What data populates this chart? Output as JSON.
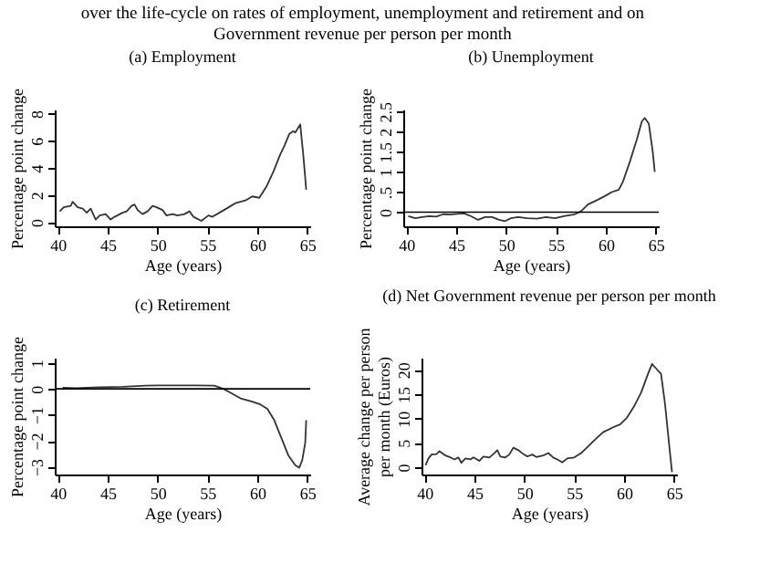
{
  "chart_data": [
    {
      "type": "line",
      "title": "(a) Employment",
      "annotations": [
        "over the life-cycle on rates of employment, unemployment and retirement and on\nGovernment revenue per person per month"
      ],
      "xlabel": "Age (years)",
      "ylabel": "Percentage point change",
      "xlim": [
        39.7,
        65.3
      ],
      "xticks": [
        40,
        45,
        50,
        55,
        60,
        65
      ],
      "ylim": [
        -0.3,
        8.3
      ],
      "yticks": [
        0,
        2,
        4,
        6,
        8
      ],
      "series": [
        {
          "color": "#333333",
          "x": [
            40.2,
            40.6,
            41.3,
            41.5,
            42,
            42.5,
            42.9,
            43.3,
            43.8,
            44.2,
            44.8,
            45.3,
            45.7,
            46.5,
            46.9,
            47.4,
            47.7,
            48,
            48.5,
            49,
            49.5,
            49.9,
            50.5,
            50.9,
            51.5,
            52,
            52.7,
            53.2,
            53.6,
            54.4,
            55.1,
            55.5,
            56.2,
            56.9,
            57.8,
            58.8,
            59.5,
            60.2,
            60.9,
            61.6,
            62.3,
            62.7,
            63.2,
            63.6,
            63.8,
            64.3,
            64.6,
            64.9
          ],
          "values": [
            0.8,
            1.1,
            1.2,
            1.5,
            1.1,
            1.0,
            0.7,
            1.0,
            0.2,
            0.5,
            0.6,
            0.2,
            0.4,
            0.7,
            0.8,
            1.2,
            1.3,
            0.9,
            0.6,
            0.8,
            1.2,
            1.1,
            0.9,
            0.5,
            0.6,
            0.5,
            0.6,
            0.8,
            0.4,
            0.1,
            0.5,
            0.4,
            0.7,
            1.0,
            1.4,
            1.6,
            1.9,
            1.8,
            2.6,
            3.7,
            5.0,
            5.6,
            6.5,
            6.7,
            6.6,
            7.2,
            5.0,
            2.4
          ]
        }
      ]
    },
    {
      "type": "line",
      "title": "(b) Unemployment",
      "xlabel": "Age (years)",
      "ylabel": "Percentage point change",
      "xlim": [
        39.7,
        65.3
      ],
      "xticks": [
        40,
        45,
        50,
        55,
        60,
        65
      ],
      "ylim": [
        -0.35,
        2.55
      ],
      "yticks": [
        0,
        {
          "value": 0.5,
          "label": ".5"
        },
        1,
        1.5,
        2,
        {
          "value": 2.5,
          "label": "2.5"
        }
      ],
      "ref_lines": [
        {
          "axis": "y",
          "value": 0
        }
      ],
      "series": [
        {
          "color": "#333333",
          "x": [
            40.2,
            40.9,
            41.6,
            42.3,
            43,
            43.7,
            44.4,
            45.1,
            45.8,
            46.5,
            47.2,
            47.9,
            48.6,
            49.3,
            49.9,
            50.5,
            51.2,
            52.1,
            53.1,
            54,
            54.9,
            55.9,
            56.8,
            57.5,
            58.2,
            59.2,
            59.9,
            60.6,
            61.3,
            61.7,
            62.4,
            63.1,
            63.6,
            63.9,
            64.3,
            64.7,
            64.9
          ],
          "values": [
            -0.1,
            -0.15,
            -0.12,
            -0.1,
            -0.11,
            -0.05,
            -0.06,
            -0.04,
            -0.03,
            -0.1,
            -0.19,
            -0.12,
            -0.12,
            -0.19,
            -0.22,
            -0.15,
            -0.12,
            -0.15,
            -0.16,
            -0.12,
            -0.15,
            -0.09,
            -0.06,
            0.02,
            0.19,
            0.31,
            0.4,
            0.5,
            0.56,
            0.75,
            1.25,
            1.8,
            2.25,
            2.34,
            2.2,
            1.5,
            1.0
          ]
        }
      ]
    },
    {
      "type": "line",
      "title": "(c) Retirement",
      "xlabel": "Age (years)",
      "ylabel": "Percentage point change",
      "xlim": [
        39.7,
        65.3
      ],
      "xticks": [
        40,
        45,
        50,
        55,
        60,
        65
      ],
      "ylim": [
        -3.3,
        1.2
      ],
      "yticks": [
        {
          "value": -3,
          "label": "−3"
        },
        {
          "value": -2,
          "label": "−2"
        },
        {
          "value": -1,
          "label": "−1"
        },
        0,
        1
      ],
      "ref_lines": [
        {
          "axis": "y",
          "value": 0
        }
      ],
      "series": [
        {
          "color": "#333333",
          "x": [
            40.5,
            41.8,
            44.1,
            46.5,
            48.8,
            50.1,
            51.9,
            53.8,
            55.7,
            56.6,
            57.5,
            58.4,
            59.4,
            60.3,
            61,
            61.7,
            62.4,
            63.1,
            63.8,
            64.2,
            64.5,
            64.8,
            64.9
          ],
          "values": [
            0.04,
            0.03,
            0.06,
            0.08,
            0.12,
            0.13,
            0.13,
            0.13,
            0.12,
            0,
            -0.19,
            -0.38,
            -0.48,
            -0.6,
            -0.77,
            -1.21,
            -1.88,
            -2.56,
            -2.94,
            -3.04,
            -2.75,
            -2.08,
            -1.21
          ]
        }
      ]
    },
    {
      "type": "line",
      "title": "(d) Net Government revenue per person per month",
      "xlabel": "Age (years)",
      "ylabel": "Average change per person\nper month (Euros)",
      "xlim": [
        39.7,
        65.3
      ],
      "xticks": [
        40,
        45,
        50,
        55,
        60,
        65
      ],
      "ylim": [
        -1.5,
        22.5
      ],
      "yticks": [
        0,
        5,
        10,
        15,
        20
      ],
      "series": [
        {
          "color": "#333333",
          "x": [
            40.1,
            40.4,
            40.7,
            41.2,
            41.5,
            42.1,
            42.5,
            43,
            43.4,
            43.7,
            44.1,
            44.6,
            44.9,
            45.5,
            45.9,
            46.5,
            46.9,
            47.3,
            47.6,
            48.1,
            48.5,
            48.9,
            49.4,
            49.9,
            50.3,
            50.8,
            51.2,
            51.9,
            52.4,
            52.9,
            53.4,
            53.8,
            54.3,
            55,
            55.7,
            56.4,
            57.1,
            57.9,
            58.9,
            59.6,
            60.3,
            61,
            61.7,
            62.4,
            62.8,
            63.2,
            63.7,
            64.1,
            64.6,
            64.8
          ],
          "values": [
            0.4,
            1.8,
            2.6,
            2.7,
            3.3,
            2.4,
            2.1,
            1.6,
            2,
            0.9,
            1.8,
            1.6,
            2,
            1.3,
            2.2,
            2,
            2.7,
            3.5,
            2.2,
            2,
            2.6,
            4,
            3.5,
            2.7,
            2.2,
            2.6,
            2.1,
            2.4,
            2.9,
            2,
            1.5,
            1,
            1.8,
            2,
            2.9,
            4.3,
            5.7,
            7.2,
            8.2,
            8.8,
            10.2,
            12.5,
            15.3,
            19.2,
            21.2,
            20.3,
            19.2,
            13,
            2.9,
            -1
          ]
        }
      ]
    }
  ]
}
